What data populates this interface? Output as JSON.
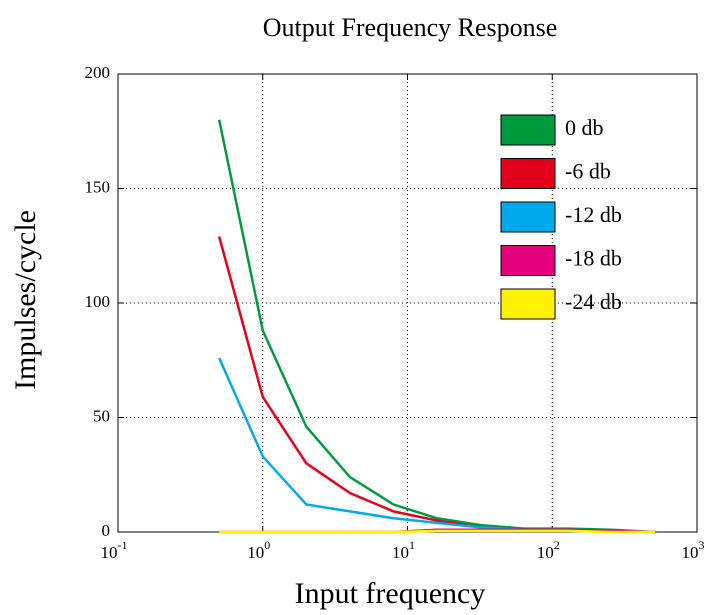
{
  "chart_data": {
    "type": "line",
    "title": "Output Frequency Response",
    "x_label": "Input frequency",
    "y_label": "Impulses/cycle",
    "x": [
      0.5,
      1,
      2,
      4,
      8,
      16,
      32,
      64,
      128,
      256,
      512
    ],
    "log_x": true,
    "grid": true,
    "legend": "upper right",
    "xlim": [
      0.1,
      1000
    ],
    "xticks": [
      {
        "value": 0.1,
        "label": "10",
        "exponent": "-1"
      },
      {
        "value": 1,
        "label": "10",
        "exponent": "0"
      },
      {
        "value": 10,
        "label": "10",
        "exponent": "1"
      },
      {
        "value": 100,
        "label": "10",
        "exponent": "2"
      },
      {
        "value": 1000,
        "label": "10",
        "exponent": "3"
      }
    ],
    "ylim": [
      0,
      200
    ],
    "yticks": [
      0,
      50,
      100,
      150,
      200
    ],
    "series": [
      {
        "name": "0 db",
        "color": "#009a3e",
        "values": [
          180,
          88,
          46,
          24,
          12,
          6,
          3,
          1.5,
          1.5,
          1,
          0
        ]
      },
      {
        "name": "-6 db",
        "color": "#e3001b",
        "values": [
          129,
          59,
          30,
          17,
          9,
          5,
          2,
          1,
          1,
          0.5,
          0
        ]
      },
      {
        "name": "-12 db",
        "color": "#00a8ec",
        "values": [
          76,
          33,
          12,
          9,
          6,
          4,
          2,
          1,
          1,
          0.5,
          0
        ]
      },
      {
        "name": "-18 db",
        "color": "#e5007d",
        "values": [
          0,
          0,
          0,
          0,
          0,
          1,
          1,
          1,
          1,
          0.5,
          0
        ]
      },
      {
        "name": "-24 db",
        "color": "#fff200",
        "values": [
          0,
          0,
          0,
          0,
          0,
          0.5,
          0.5,
          0.5,
          0.5,
          0,
          0
        ]
      }
    ]
  }
}
